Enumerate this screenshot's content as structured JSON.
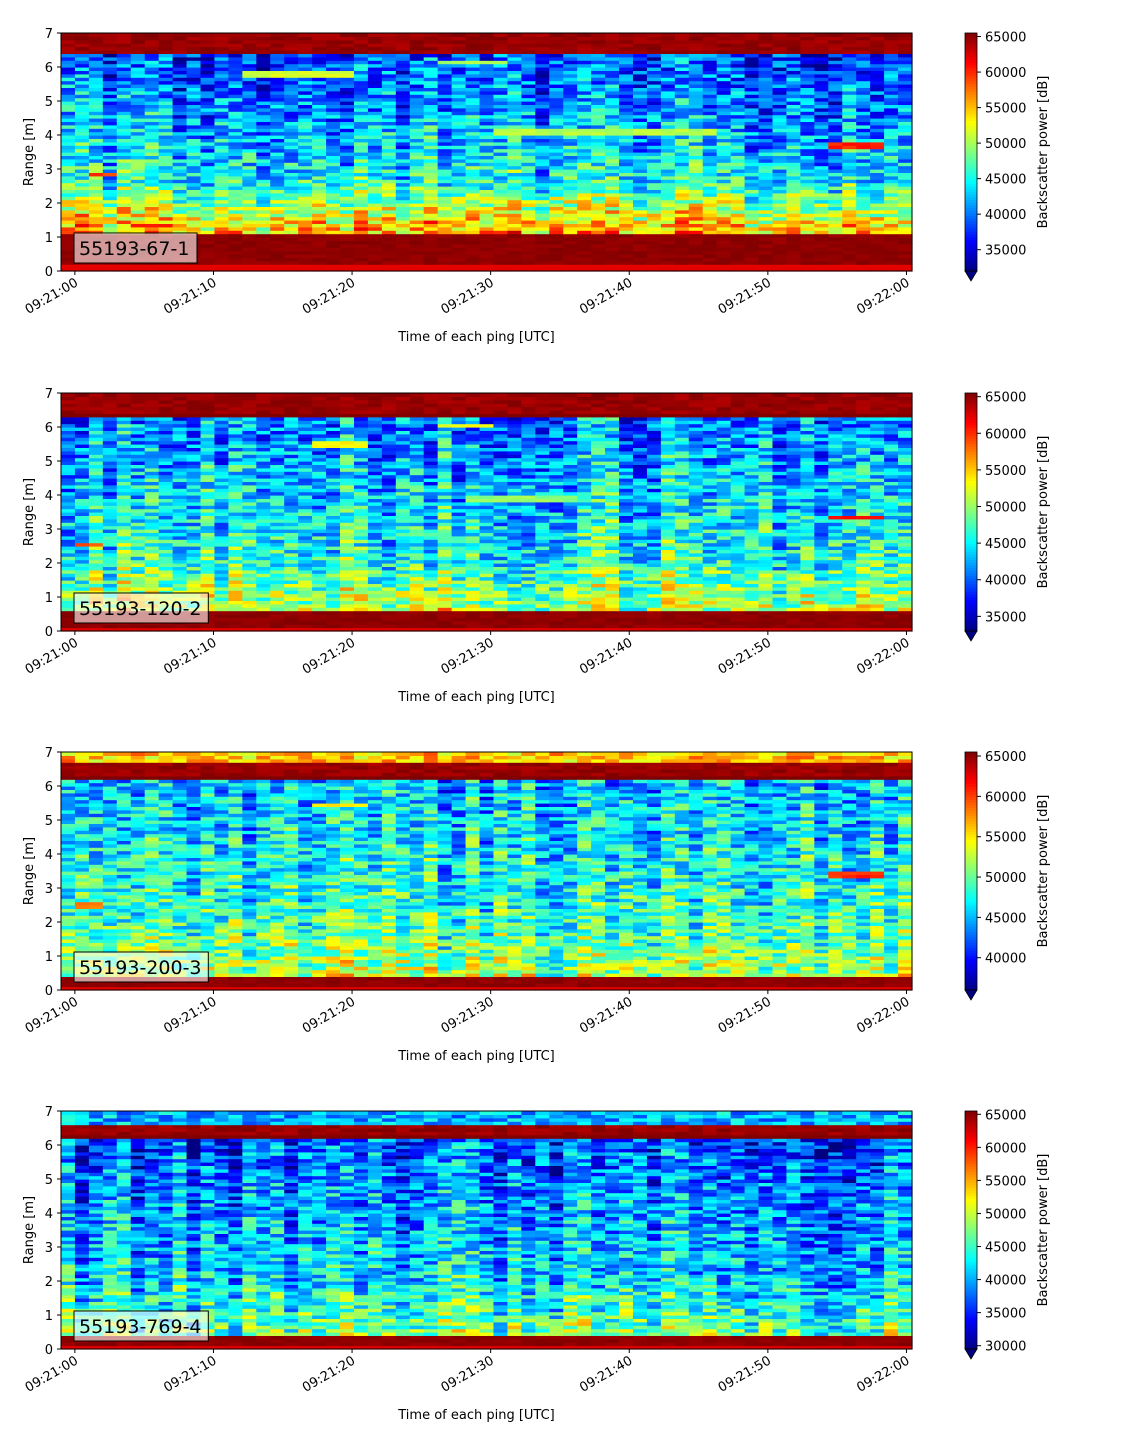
{
  "chart_data": [
    {
      "type": "heatmap",
      "label": "55193-67-1",
      "xlabel": "Time of each ping [UTC]",
      "ylabel": "Range [m]",
      "x_ticks": [
        "09:21:00",
        "09:21:10",
        "09:21:20",
        "09:21:30",
        "09:21:40",
        "09:21:50",
        "09:22:00"
      ],
      "x_range": [
        "09:20:59",
        "09:22:00.4"
      ],
      "y_ticks": [
        0,
        1,
        2,
        3,
        4,
        5,
        6,
        7
      ],
      "ylim": [
        0,
        7
      ],
      "colorbar": {
        "label": "Backscatter power [dB]",
        "ticks": [
          35000,
          40000,
          45000,
          50000,
          55000,
          60000,
          65000
        ],
        "range": [
          32000,
          65500
        ],
        "extend": "min",
        "colormap": "jet"
      },
      "features": {
        "bottom_band_m": [
          0.2,
          1.1
        ],
        "top_band_m": [
          6.45,
          7.0
        ],
        "surface_gap_m": 6.45,
        "near_bottom_level": 0.72,
        "mid_level": 0.38,
        "upper_level": 0.18,
        "streaks": [
          {
            "t_start": 1.0,
            "t_end": 3.0,
            "range_m": 2.85,
            "level": 0.82
          },
          {
            "t_start": 12.0,
            "t_end": 20.0,
            "range_m": 5.8,
            "level": 0.58
          },
          {
            "t_start": 26.0,
            "t_end": 31.0,
            "range_m": 6.15,
            "level": 0.55
          },
          {
            "t_start": 30.0,
            "t_end": 46.0,
            "range_m": 4.1,
            "level": 0.55
          },
          {
            "t_start": 54.0,
            "t_end": 58.0,
            "range_m": 3.7,
            "level": 0.84
          }
        ]
      }
    },
    {
      "type": "heatmap",
      "label": "55193-120-2",
      "xlabel": "Time of each ping [UTC]",
      "ylabel": "Range [m]",
      "x_ticks": [
        "09:21:00",
        "09:21:10",
        "09:21:20",
        "09:21:30",
        "09:21:40",
        "09:21:50",
        "09:22:00"
      ],
      "x_range": [
        "09:20:59",
        "09:22:00.4"
      ],
      "y_ticks": [
        0,
        1,
        2,
        3,
        4,
        5,
        6,
        7
      ],
      "ylim": [
        0,
        7
      ],
      "colorbar": {
        "label": "Backscatter power [dB]",
        "ticks": [
          35000,
          40000,
          45000,
          50000,
          55000,
          60000,
          65000
        ],
        "range": [
          33000,
          65500
        ],
        "extend": "min",
        "colormap": "jet"
      },
      "features": {
        "bottom_band_m": [
          0.15,
          0.55
        ],
        "top_band_m": [
          6.4,
          7.0
        ],
        "surface_gap_m": 6.35,
        "near_bottom_level": 0.58,
        "mid_level": 0.4,
        "upper_level": 0.25,
        "streaks": [
          {
            "t_start": 0.0,
            "t_end": 2.0,
            "range_m": 2.55,
            "level": 0.8
          },
          {
            "t_start": 17.0,
            "t_end": 21.0,
            "range_m": 5.5,
            "level": 0.62
          },
          {
            "t_start": 26.0,
            "t_end": 30.0,
            "range_m": 6.05,
            "level": 0.6
          },
          {
            "t_start": 28.0,
            "t_end": 36.0,
            "range_m": 3.9,
            "level": 0.52
          },
          {
            "t_start": 54.0,
            "t_end": 58.0,
            "range_m": 3.35,
            "level": 0.86
          }
        ]
      }
    },
    {
      "type": "heatmap",
      "label": "55193-200-3",
      "xlabel": "Time of each ping [UTC]",
      "ylabel": "Range [m]",
      "x_ticks": [
        "09:21:00",
        "09:21:10",
        "09:21:20",
        "09:21:30",
        "09:21:40",
        "09:21:50",
        "09:22:00"
      ],
      "x_range": [
        "09:20:59",
        "09:22:00.4"
      ],
      "y_ticks": [
        0,
        1,
        2,
        3,
        4,
        5,
        6,
        7
      ],
      "ylim": [
        0,
        7
      ],
      "colorbar": {
        "label": "Backscatter power [dB]",
        "ticks": [
          40000,
          45000,
          50000,
          55000,
          60000,
          65000
        ],
        "range": [
          36000,
          65500
        ],
        "extend": "min",
        "colormap": "jet"
      },
      "features": {
        "bottom_band_m": [
          0.1,
          0.4
        ],
        "top_band_m": [
          6.3,
          6.7
        ],
        "top_above_level": 0.68,
        "surface_gap_m": 6.3,
        "near_bottom_level": 0.55,
        "mid_level": 0.42,
        "upper_level": 0.3,
        "streaks": [
          {
            "t_start": 0.0,
            "t_end": 2.0,
            "range_m": 2.5,
            "level": 0.74
          },
          {
            "t_start": 17.0,
            "t_end": 21.0,
            "range_m": 5.45,
            "level": 0.66
          },
          {
            "t_start": 54.0,
            "t_end": 58.0,
            "range_m": 3.4,
            "level": 0.84
          }
        ]
      }
    },
    {
      "type": "heatmap",
      "label": "55193-769-4",
      "xlabel": "Time of each ping [UTC]",
      "ylabel": "Range [m]",
      "x_ticks": [
        "09:21:00",
        "09:21:10",
        "09:21:20",
        "09:21:30",
        "09:21:40",
        "09:21:50",
        "09:22:00"
      ],
      "x_range": [
        "09:20:59",
        "09:22:00.4"
      ],
      "y_ticks": [
        0,
        1,
        2,
        3,
        4,
        5,
        6,
        7
      ],
      "ylim": [
        0,
        7
      ],
      "colorbar": {
        "label": "Backscatter power [dB]",
        "ticks": [
          30000,
          35000,
          40000,
          45000,
          50000,
          55000,
          60000,
          65000
        ],
        "range": [
          29500,
          65500
        ],
        "extend": "min",
        "colormap": "jet"
      },
      "features": {
        "bottom_band_m": [
          0.15,
          0.35
        ],
        "top_band_m": [
          6.35,
          6.55
        ],
        "top_above_level": 0.3,
        "surface_gap_m": 6.3,
        "near_bottom_level": 0.5,
        "mid_level": 0.33,
        "upper_level": 0.2,
        "streaks": []
      }
    }
  ]
}
